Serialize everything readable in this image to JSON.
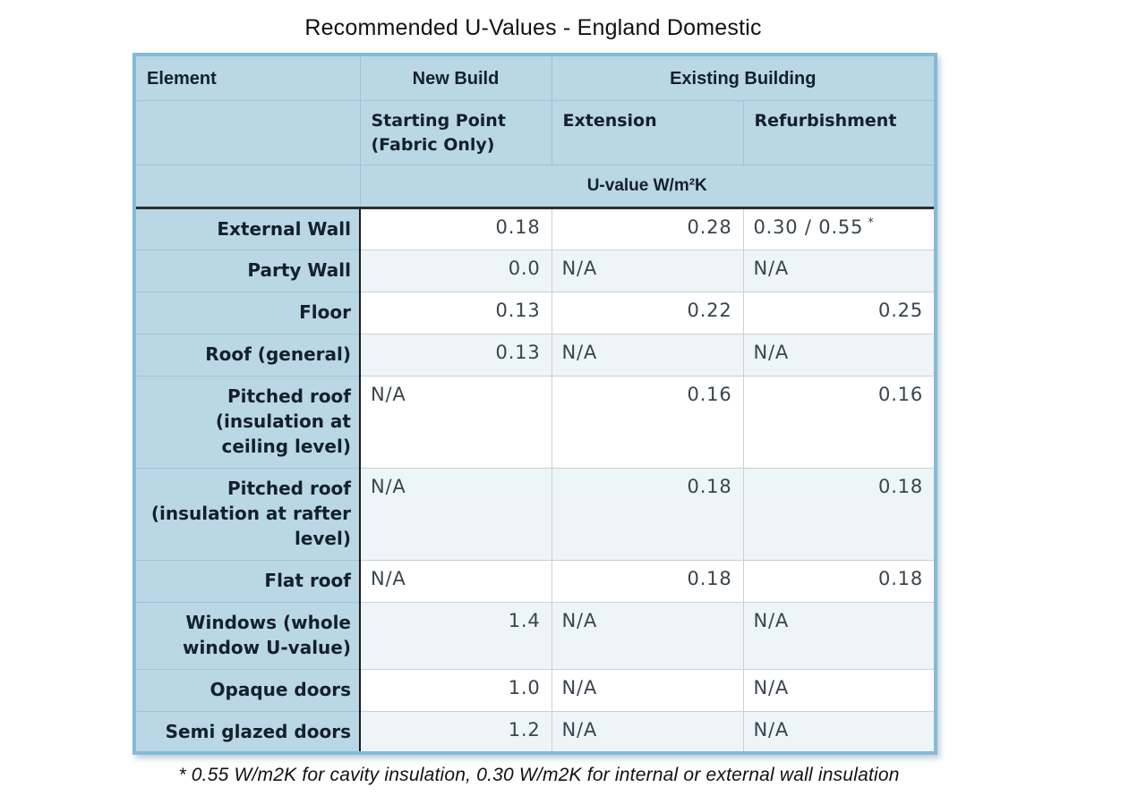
{
  "colors": {
    "outer_border": "#85b9d9",
    "header_bg": "#bad7e6",
    "row_tint_bg": "#eef5f9",
    "row_white_bg": "#ffffff",
    "dark_divider": "#1b1b1b",
    "light_grid": "#cbd1d5",
    "header_grid": "#a3c2d3",
    "text_dark": "#14202b"
  },
  "chart_data": {
    "type": "table",
    "title": "Recommended U-Values - England Domestic",
    "header": {
      "element": "Element",
      "new_build": "New Build",
      "existing_building": "Existing Building",
      "starting_point": "Starting Point\n(Fabric Only)",
      "extension": "Extension",
      "refurbishment": "Refurbishment",
      "unit_label": "U-value W/m²K"
    },
    "rows": [
      {
        "label": "External Wall",
        "starting_point": "0.18",
        "extension": "0.28",
        "refurbishment": "0.30 / 0.55",
        "refurbishment_note_marker": "*"
      },
      {
        "label": "Party Wall",
        "starting_point": "0.0",
        "extension": "N/A",
        "refurbishment": "N/A"
      },
      {
        "label": "Floor",
        "starting_point": "0.13",
        "extension": "0.22",
        "refurbishment": "0.25"
      },
      {
        "label": "Roof (general)",
        "starting_point": "0.13",
        "extension": "N/A",
        "refurbishment": "N/A"
      },
      {
        "label": "Pitched roof\n(insulation at\nceiling level)",
        "starting_point": "N/A",
        "extension": "0.16",
        "refurbishment": "0.16"
      },
      {
        "label": "Pitched roof\n(insulation at rafter\nlevel)",
        "starting_point": "N/A",
        "extension": "0.18",
        "refurbishment": "0.18"
      },
      {
        "label": "Flat roof",
        "starting_point": "N/A",
        "extension": "0.18",
        "refurbishment": "0.18"
      },
      {
        "label": "Windows (whole\nwindow U-value)",
        "starting_point": "1.4",
        "extension": "N/A",
        "refurbishment": "N/A"
      },
      {
        "label": "Opaque doors",
        "starting_point": "1.0",
        "extension": "N/A",
        "refurbishment": "N/A"
      },
      {
        "label": "Semi glazed doors",
        "starting_point": "1.2",
        "extension": "N/A",
        "refurbishment": "N/A"
      }
    ],
    "footnote": "* 0.55 W/m2K for cavity insulation, 0.30 W/m2K for internal or external wall insulation"
  }
}
